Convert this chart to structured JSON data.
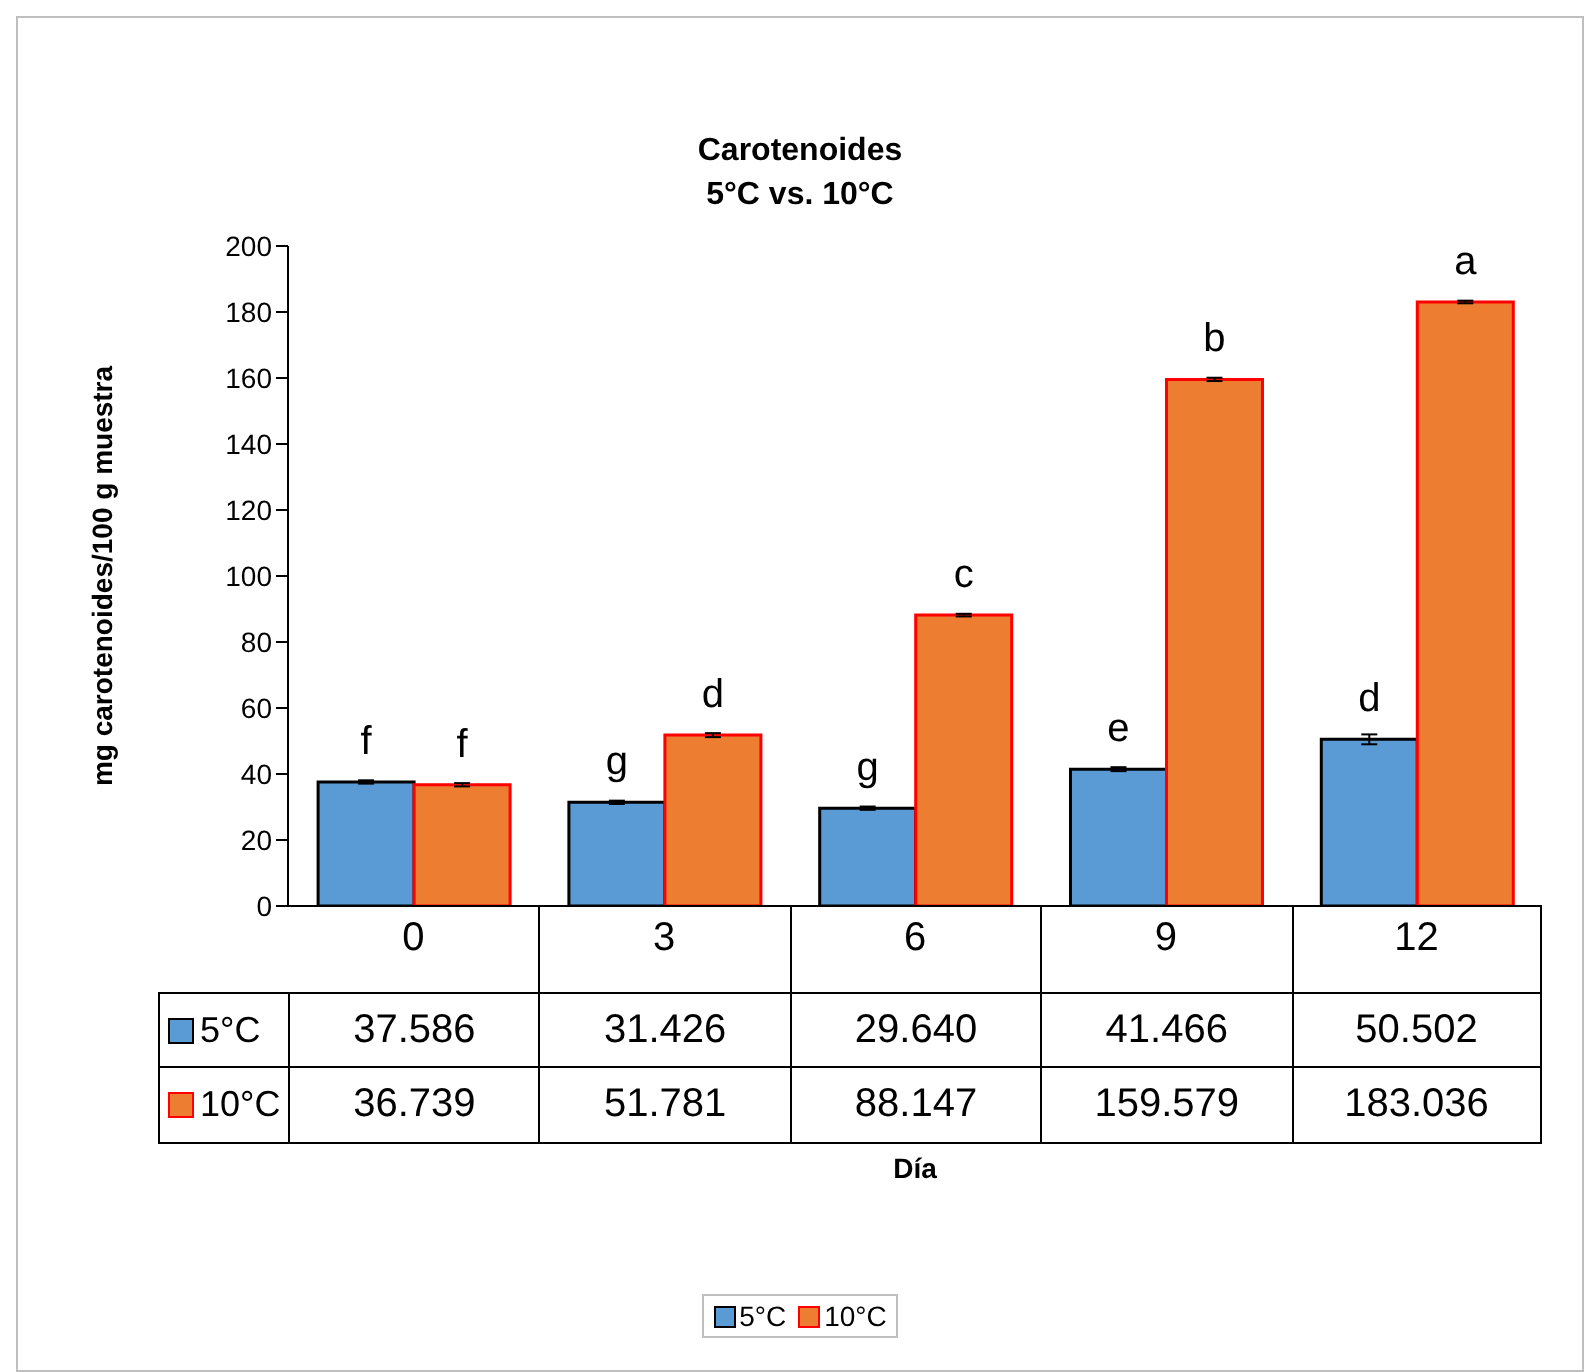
{
  "chart_data": {
    "type": "bar",
    "title": "Carotenoides",
    "subtitle": "5°C vs. 10°C",
    "ylabel": "mg carotenoides/100 g muestra",
    "categories": [
      "0",
      "3",
      "6",
      "9",
      "12"
    ],
    "series": [
      {
        "name": "5°C",
        "color": "#5b9bd5",
        "values": [
          37.586,
          31.426,
          29.64,
          41.466,
          50.502
        ],
        "errors": [
          0.5,
          0.5,
          0.5,
          0.6,
          1.5
        ],
        "value_labels": [
          "37.586",
          "31.426",
          "29.640",
          "41.466",
          "50.502"
        ]
      },
      {
        "name": "10°C",
        "color": "#ed7d31",
        "values": [
          36.739,
          51.781,
          88.147,
          159.579,
          183.036
        ],
        "errors": [
          0.5,
          0.6,
          0.4,
          0.5,
          0.4
        ],
        "value_labels": [
          "36.739",
          "51.781",
          "88.147",
          "159.579",
          "183.036"
        ]
      }
    ],
    "ylim": [
      0,
      200
    ],
    "yticks": [
      0,
      20,
      40,
      60,
      80,
      100,
      120,
      140,
      160,
      180,
      200
    ],
    "legend": "bottom",
    "annotations": [
      "Día",
      {
        "text": "f",
        "x": "0",
        "y": 37.586
      },
      {
        "text": "f",
        "x": "0",
        "y": 36.739
      },
      {
        "text": "g",
        "x": "3",
        "y": 31.426
      },
      {
        "text": "d",
        "x": "3",
        "y": 51.781
      },
      {
        "text": "g",
        "x": "6",
        "y": 29.64
      },
      {
        "text": "c",
        "x": "6",
        "y": 88.147
      },
      {
        "text": "e",
        "x": "9",
        "y": 41.466
      },
      {
        "text": "b",
        "x": "9",
        "y": 159.579
      },
      {
        "text": "d",
        "x": "12",
        "y": 50.502
      },
      {
        "text": "a",
        "x": "12",
        "y": 183.036
      }
    ]
  }
}
